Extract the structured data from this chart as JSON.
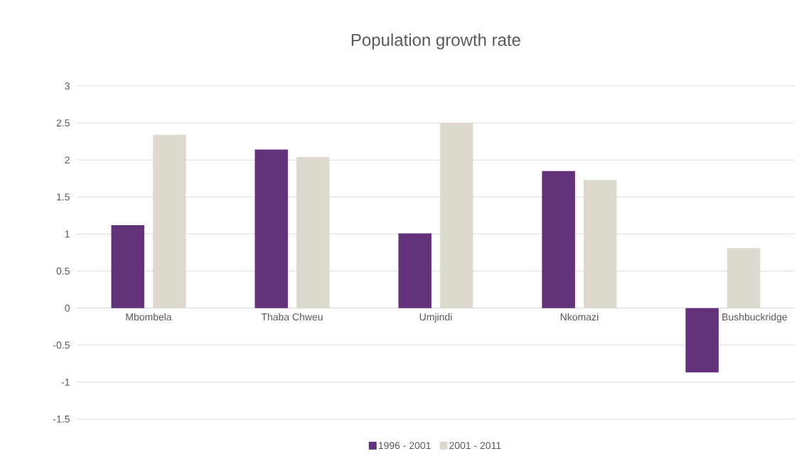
{
  "chart_data": {
    "type": "bar",
    "title": "Population growth rate",
    "categories": [
      "Mbombela",
      "Thaba Chweu",
      "Umjindi",
      "Nkomazi",
      "Bushbuckridge"
    ],
    "series": [
      {
        "name": "1996 - 2001",
        "color": "#63317a",
        "values": [
          1.12,
          2.14,
          1.01,
          1.85,
          -0.87
        ]
      },
      {
        "name": "2001 - 2011",
        "color": "#ddd9ce",
        "values": [
          2.34,
          2.04,
          2.5,
          1.73,
          0.81
        ]
      }
    ],
    "ylim": [
      -1.5,
      3
    ],
    "yticks": [
      -1.5,
      -1,
      -0.5,
      0,
      0.5,
      1,
      1.5,
      2,
      2.5,
      3
    ],
    "grid": "y",
    "legend": "bottom"
  }
}
